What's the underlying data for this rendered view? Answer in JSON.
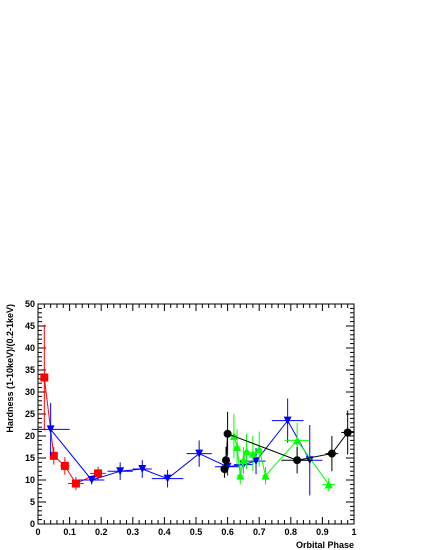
{
  "chart_data": {
    "type": "scatter",
    "xlabel": "Orbital Phase",
    "ylabel": "Hardness (1-10keV)/(0.2-1keV)",
    "xlim": [
      0,
      1
    ],
    "ylim": [
      0,
      50
    ],
    "x_ticks": [
      "0",
      "0.1",
      "0.2",
      "0.3",
      "0.4",
      "0.5",
      "0.6",
      "0.7",
      "0.8",
      "0.9",
      "1"
    ],
    "y_ticks": [
      "0",
      "5",
      "10",
      "15",
      "20",
      "25",
      "30",
      "35",
      "40",
      "45",
      "50"
    ],
    "grid": false,
    "series": [
      {
        "color": "#ff0000",
        "marker": "square",
        "points": [
          {
            "x": 0.02,
            "y": 33.3,
            "xerr": 0.01,
            "yerr": 12
          },
          {
            "x": 0.05,
            "y": 15.5,
            "xerr": 0.01,
            "yerr": 2
          },
          {
            "x": 0.085,
            "y": 13.2,
            "xerr": 0.015,
            "yerr": 2
          },
          {
            "x": 0.12,
            "y": 9.2,
            "xerr": 0.025,
            "yerr": 1.5
          },
          {
            "x": 0.19,
            "y": 11.5,
            "xerr": 0.025,
            "yerr": 1.5
          }
        ]
      },
      {
        "color": "#0000ff",
        "marker": "triangle-down",
        "points": [
          {
            "x": 0.04,
            "y": 21.5,
            "xerr": 0.06,
            "yerr": 6
          },
          {
            "x": 0.17,
            "y": 10,
            "xerr": 0.04,
            "yerr": 1
          },
          {
            "x": 0.26,
            "y": 12,
            "xerr": 0.04,
            "yerr": 2
          },
          {
            "x": 0.33,
            "y": 12.5,
            "xerr": 0.03,
            "yerr": 2
          },
          {
            "x": 0.41,
            "y": 10.3,
            "xerr": 0.05,
            "yerr": 2
          },
          {
            "x": 0.51,
            "y": 16,
            "xerr": 0.04,
            "yerr": 3
          },
          {
            "x": 0.6,
            "y": 13,
            "xerr": 0.04,
            "yerr": 2
          },
          {
            "x": 0.65,
            "y": 13.5,
            "xerr": 0.03,
            "yerr": 2
          },
          {
            "x": 0.69,
            "y": 14.3,
            "xerr": 0.03,
            "yerr": 3
          },
          {
            "x": 0.79,
            "y": 23.5,
            "xerr": 0.05,
            "yerr": 5
          },
          {
            "x": 0.86,
            "y": 14.5,
            "xerr": 0.04,
            "yerr": 8
          }
        ]
      },
      {
        "color": "#00ff00",
        "marker": "triangle-up",
        "points": [
          {
            "x": 0.62,
            "y": 20,
            "xerr": 0.01,
            "yerr": 5
          },
          {
            "x": 0.63,
            "y": 17.5,
            "xerr": 0.01,
            "yerr": 4
          },
          {
            "x": 0.64,
            "y": 11,
            "xerr": 0.01,
            "yerr": 2
          },
          {
            "x": 0.65,
            "y": 14.5,
            "xerr": 0.01,
            "yerr": 3
          },
          {
            "x": 0.66,
            "y": 16.5,
            "xerr": 0.01,
            "yerr": 4
          },
          {
            "x": 0.68,
            "y": 16,
            "xerr": 0.01,
            "yerr": 4
          },
          {
            "x": 0.7,
            "y": 17,
            "xerr": 0.01,
            "yerr": 4
          },
          {
            "x": 0.72,
            "y": 11,
            "xerr": 0.01,
            "yerr": 2
          },
          {
            "x": 0.82,
            "y": 19,
            "xerr": 0.04,
            "yerr": 4
          },
          {
            "x": 0.92,
            "y": 9,
            "xerr": 0.02,
            "yerr": 1.5
          }
        ]
      },
      {
        "color": "#000000",
        "marker": "circle",
        "points": [
          {
            "x": 0.59,
            "y": 12.5,
            "xerr": 0.005,
            "yerr": 2
          },
          {
            "x": 0.595,
            "y": 14.5,
            "xerr": 0.005,
            "yerr": 3
          },
          {
            "x": 0.6,
            "y": 20.5,
            "xerr": 0.01,
            "yerr": 5
          },
          {
            "x": 0.82,
            "y": 14.5,
            "xerr": 0.05,
            "yerr": 3
          },
          {
            "x": 0.93,
            "y": 16,
            "xerr": 0.02,
            "yerr": 4
          },
          {
            "x": 0.98,
            "y": 20.8,
            "xerr": 0.02,
            "yerr": 5
          }
        ]
      }
    ]
  }
}
